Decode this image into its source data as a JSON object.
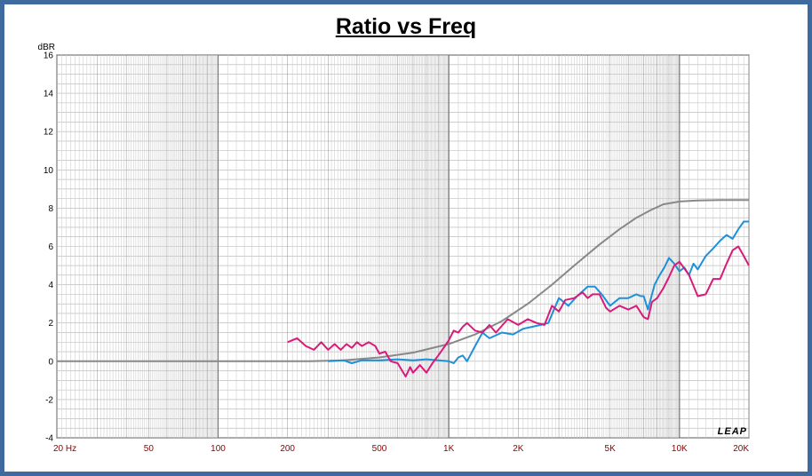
{
  "chart_data": {
    "type": "line",
    "title": "Ratio vs Freq",
    "ylabel": "dBR",
    "xscale": "log",
    "xlim": [
      20,
      20000
    ],
    "ylim": [
      -4,
      16
    ],
    "grid": true,
    "logo": "LEAP",
    "yticks": [
      "-4",
      "-2",
      "0",
      "2",
      "4",
      "6",
      "8",
      "10",
      "12",
      "14",
      "16"
    ],
    "xticks": [
      {
        "value": 20,
        "label": "20  Hz"
      },
      {
        "value": 50,
        "label": "50"
      },
      {
        "value": 100,
        "label": "100"
      },
      {
        "value": 200,
        "label": "200"
      },
      {
        "value": 500,
        "label": "500"
      },
      {
        "value": 1000,
        "label": "1K"
      },
      {
        "value": 2000,
        "label": "2K"
      },
      {
        "value": 5000,
        "label": "5K"
      },
      {
        "value": 10000,
        "label": "10K"
      },
      {
        "value": 20000,
        "label": "20K"
      }
    ],
    "series": [
      {
        "color": "#888888",
        "x": [
          20,
          100,
          180,
          250,
          350,
          500,
          700,
          1000,
          1300,
          1700,
          2200,
          2800,
          3500,
          4500,
          5500,
          6500,
          7500,
          8500,
          10000,
          12000,
          15000,
          20000
        ],
        "y": [
          0,
          0,
          0,
          0,
          0.05,
          0.2,
          0.45,
          0.9,
          1.4,
          2.1,
          3.0,
          4.0,
          5.0,
          6.1,
          6.9,
          7.5,
          7.9,
          8.2,
          8.35,
          8.4,
          8.42,
          8.42
        ]
      },
      {
        "color": "#1e90d8",
        "x": [
          300,
          350,
          380,
          420,
          500,
          600,
          700,
          800,
          900,
          1000,
          1050,
          1100,
          1150,
          1200,
          1300,
          1400,
          1500,
          1700,
          1900,
          2100,
          2300,
          2500,
          2700,
          3000,
          3300,
          3600,
          4000,
          4300,
          4600,
          5000,
          5500,
          6000,
          6500,
          6800,
          7000,
          7300,
          7800,
          8200,
          8600,
          9000,
          9500,
          10000,
          10500,
          11000,
          11500,
          12000,
          13000,
          14000,
          15000,
          16000,
          17000,
          18000,
          19000,
          20000
        ],
        "y": [
          0,
          0.05,
          -0.1,
          0.05,
          0.05,
          0.1,
          0.05,
          0.1,
          0.05,
          0.0,
          -0.1,
          0.2,
          0.3,
          0.0,
          0.8,
          1.5,
          1.2,
          1.5,
          1.4,
          1.7,
          1.8,
          1.9,
          2.0,
          3.3,
          2.9,
          3.4,
          3.9,
          3.9,
          3.5,
          2.9,
          3.3,
          3.3,
          3.5,
          3.4,
          3.4,
          2.7,
          4.0,
          4.5,
          4.9,
          5.4,
          5.1,
          4.7,
          4.9,
          4.5,
          5.1,
          4.8,
          5.5,
          5.9,
          6.3,
          6.6,
          6.4,
          6.9,
          7.3,
          7.3
        ]
      },
      {
        "color": "#d81b7a",
        "x": [
          200,
          220,
          240,
          260,
          280,
          300,
          320,
          340,
          360,
          380,
          400,
          420,
          450,
          480,
          500,
          530,
          560,
          600,
          650,
          680,
          700,
          750,
          800,
          850,
          900,
          950,
          1000,
          1050,
          1100,
          1150,
          1200,
          1300,
          1400,
          1500,
          1600,
          1800,
          2000,
          2200,
          2400,
          2600,
          2800,
          3000,
          3200,
          3500,
          3800,
          4000,
          4200,
          4500,
          4800,
          5000,
          5500,
          6000,
          6500,
          7000,
          7300,
          7600,
          8000,
          8500,
          9000,
          9500,
          10000,
          11000,
          12000,
          13000,
          14000,
          15000,
          16000,
          17000,
          18000,
          19000,
          20000
        ],
        "y": [
          1.0,
          1.2,
          0.8,
          0.6,
          1.0,
          0.6,
          0.9,
          0.6,
          0.9,
          0.7,
          1.0,
          0.8,
          1.0,
          0.8,
          0.4,
          0.5,
          0.0,
          -0.1,
          -0.8,
          -0.3,
          -0.6,
          -0.2,
          -0.6,
          -0.1,
          0.3,
          0.7,
          1.1,
          1.6,
          1.5,
          1.8,
          2.0,
          1.6,
          1.5,
          1.9,
          1.5,
          2.2,
          1.9,
          2.2,
          2.0,
          1.9,
          2.9,
          2.6,
          3.2,
          3.3,
          3.6,
          3.3,
          3.5,
          3.5,
          2.8,
          2.6,
          2.9,
          2.7,
          2.9,
          2.3,
          2.2,
          3.1,
          3.3,
          3.8,
          4.4,
          5.0,
          5.2,
          4.5,
          3.4,
          3.5,
          4.3,
          4.3,
          5.1,
          5.8,
          6.0,
          5.5,
          5.0
        ]
      }
    ]
  }
}
